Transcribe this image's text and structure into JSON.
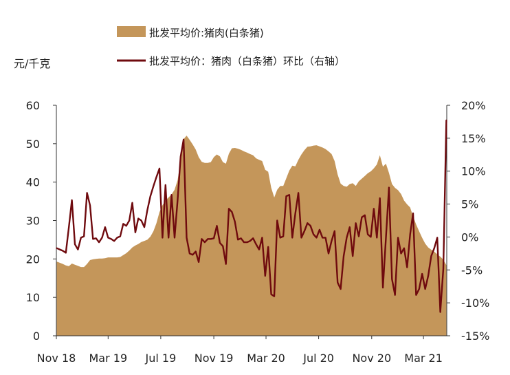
{
  "chart_data": {
    "type": "area",
    "legend": "top",
    "grid": false,
    "xlim": [
      "2018-11-01",
      "2021-04-24"
    ],
    "x_ticks": [
      {
        "date": "2018-11-01",
        "label": "Nov 18"
      },
      {
        "date": "2019-03-01",
        "label": "Mar 19"
      },
      {
        "date": "2019-07-01",
        "label": "Jul 19"
      },
      {
        "date": "2019-11-01",
        "label": "Nov 19"
      },
      {
        "date": "2020-03-01",
        "label": "Mar 20"
      },
      {
        "date": "2020-07-01",
        "label": "Jul 20"
      },
      {
        "date": "2020-11-01",
        "label": "Nov 20"
      },
      {
        "date": "2021-03-01",
        "label": "Mar 21"
      }
    ],
    "y_left": {
      "label": "元/千克",
      "range": [
        0,
        60
      ],
      "ticks": [
        0,
        10,
        20,
        30,
        40,
        50,
        60
      ],
      "tick_labels": [
        "0",
        "10",
        "20",
        "30",
        "40",
        "50",
        "60"
      ]
    },
    "y_right": {
      "range": [
        -15,
        20
      ],
      "ticks": [
        -15,
        -10,
        -5,
        0,
        5,
        10,
        15,
        20
      ],
      "tick_labels": [
        "-15%",
        "-10%",
        "-5%",
        "0%",
        "5%",
        "10%",
        "15%",
        "20%"
      ]
    },
    "x": [
      "2018-11-02",
      "2018-11-09",
      "2018-11-16",
      "2018-11-23",
      "2018-11-30",
      "2018-12-07",
      "2018-12-14",
      "2018-12-21",
      "2018-12-28",
      "2019-01-04",
      "2019-01-11",
      "2019-01-18",
      "2019-01-25",
      "2019-02-01",
      "2019-02-08",
      "2019-02-15",
      "2019-02-22",
      "2019-03-01",
      "2019-03-08",
      "2019-03-15",
      "2019-03-22",
      "2019-03-29",
      "2019-04-05",
      "2019-04-12",
      "2019-04-19",
      "2019-04-26",
      "2019-05-03",
      "2019-05-10",
      "2019-05-17",
      "2019-05-24",
      "2019-05-31",
      "2019-06-07",
      "2019-06-14",
      "2019-06-21",
      "2019-06-28",
      "2019-07-05",
      "2019-07-12",
      "2019-07-19",
      "2019-07-26",
      "2019-08-02",
      "2019-08-09",
      "2019-08-16",
      "2019-08-23",
      "2019-08-30",
      "2019-09-06",
      "2019-09-13",
      "2019-09-20",
      "2019-09-27",
      "2019-10-04",
      "2019-10-11",
      "2019-10-18",
      "2019-10-25",
      "2019-11-01",
      "2019-11-08",
      "2019-11-15",
      "2019-11-22",
      "2019-11-29",
      "2019-12-06",
      "2019-12-13",
      "2019-12-20",
      "2019-12-27",
      "2020-01-03",
      "2020-01-10",
      "2020-01-17",
      "2020-01-24",
      "2020-01-31",
      "2020-02-07",
      "2020-02-14",
      "2020-02-21",
      "2020-02-28",
      "2020-03-06",
      "2020-03-13",
      "2020-03-20",
      "2020-03-27",
      "2020-04-03",
      "2020-04-10",
      "2020-04-17",
      "2020-04-24",
      "2020-05-01",
      "2020-05-08",
      "2020-05-15",
      "2020-05-22",
      "2020-05-29",
      "2020-06-05",
      "2020-06-12",
      "2020-06-19",
      "2020-06-26",
      "2020-07-03",
      "2020-07-10",
      "2020-07-17",
      "2020-07-24",
      "2020-07-31",
      "2020-08-07",
      "2020-08-14",
      "2020-08-21",
      "2020-08-28",
      "2020-09-04",
      "2020-09-11",
      "2020-09-18",
      "2020-09-25",
      "2020-10-02",
      "2020-10-09",
      "2020-10-16",
      "2020-10-23",
      "2020-10-30",
      "2020-11-06",
      "2020-11-13",
      "2020-11-20",
      "2020-11-27",
      "2020-12-04",
      "2020-12-11",
      "2020-12-18",
      "2020-12-25",
      "2021-01-01",
      "2021-01-08",
      "2021-01-15",
      "2021-01-22",
      "2021-01-29",
      "2021-02-05",
      "2021-02-12",
      "2021-02-19",
      "2021-02-26",
      "2021-03-05",
      "2021-03-12",
      "2021-03-19",
      "2021-03-26",
      "2021-04-02",
      "2021-04-09",
      "2021-04-16",
      "2021-04-23"
    ],
    "series": [
      {
        "name": "批发平均价:猪肉(白条猪)",
        "type": "area",
        "axis": "left",
        "color": "#C4965A",
        "values": [
          19.3,
          19.0,
          18.7,
          18.3,
          18.1,
          18.8,
          18.5,
          18.2,
          17.9,
          17.9,
          18.7,
          19.7,
          19.9,
          20.0,
          20.1,
          20.1,
          20.2,
          20.4,
          20.4,
          20.4,
          20.4,
          20.5,
          21.0,
          21.5,
          22.2,
          23.0,
          23.5,
          23.9,
          24.4,
          24.7,
          25.0,
          25.8,
          27.2,
          29.3,
          32.2,
          34.0,
          35.2,
          36.0,
          36.8,
          38.0,
          40.5,
          45.5,
          51.2,
          52.1,
          51.0,
          49.8,
          48.5,
          46.5,
          45.3,
          45.0,
          45.0,
          45.2,
          46.5,
          47.2,
          46.7,
          45.2,
          44.8,
          47.4,
          48.8,
          48.9,
          48.7,
          48.4,
          48.0,
          47.7,
          47.3,
          47.0,
          46.2,
          45.8,
          45.5,
          43.2,
          42.7,
          38.5,
          36.0,
          38.0,
          39.0,
          39.0,
          41.0,
          43.0,
          44.3,
          44.1,
          45.8,
          47.2,
          48.3,
          49.2,
          49.3,
          49.5,
          49.6,
          49.3,
          49.0,
          48.6,
          48.0,
          47.3,
          45.5,
          42.0,
          39.6,
          39.0,
          38.8,
          39.5,
          39.7,
          39.0,
          40.2,
          40.9,
          41.6,
          42.3,
          42.8,
          43.6,
          44.6,
          47.0,
          44.0,
          44.8,
          42.4,
          39.5,
          38.5,
          37.9,
          36.9,
          35.2,
          34.2,
          33.4,
          31.1,
          29.0,
          27.2,
          25.5,
          24.0,
          23.0,
          22.4,
          21.9,
          21.2,
          20.6,
          19.8,
          18.4
        ]
      },
      {
        "name": "批发平均价：猪肉（白条猪）环比（右轴）",
        "type": "line",
        "axis": "right",
        "color": "#6F0A0E",
        "values": [
          -1.7,
          -1.9,
          -2.1,
          -2.4,
          1.5,
          5.6,
          -1.1,
          -1.9,
          -0.1,
          0.1,
          6.7,
          4.8,
          -0.3,
          -0.2,
          -0.8,
          -0.1,
          1.5,
          -0.1,
          -0.3,
          -0.6,
          -0.1,
          0.1,
          2.0,
          1.7,
          2.5,
          5.2,
          0.7,
          2.8,
          2.5,
          1.5,
          4.1,
          6.2,
          7.7,
          9.1,
          10.4,
          -0.1,
          7.9,
          -0.1,
          6.4,
          -0.1,
          5.6,
          12.2,
          14.8,
          -0.1,
          -2.5,
          -2.7,
          -2.2,
          -3.8,
          -0.3,
          -0.8,
          -0.3,
          -0.3,
          -0.2,
          1.7,
          -0.9,
          -1.4,
          -4.1,
          4.3,
          3.8,
          2.3,
          -0.4,
          -0.2,
          -0.8,
          -0.8,
          -0.6,
          -0.2,
          -1.1,
          -1.9,
          -0.1,
          -5.9,
          -1.5,
          -8.7,
          -9.0,
          2.5,
          -0.1,
          0.1,
          6.2,
          6.4,
          -0.1,
          3.6,
          6.7,
          -0.1,
          0.9,
          2.1,
          1.7,
          0.4,
          -0.1,
          1.1,
          -0.1,
          -0.1,
          -2.5,
          -0.6,
          0.9,
          -6.9,
          -7.9,
          -2.9,
          -0.1,
          1.5,
          -2.9,
          2.1,
          0.1,
          3.0,
          3.3,
          0.4,
          0.0,
          4.3,
          -0.1,
          5.9,
          -7.7,
          -0.1,
          7.5,
          -6.4,
          -8.8,
          -0.1,
          -2.5,
          -1.7,
          -4.6,
          0.4,
          3.6,
          -8.8,
          -7.9,
          -5.6,
          -7.9,
          -5.9,
          -2.9,
          -1.7,
          -0.1,
          -11.4,
          -4.8,
          17.7
        ]
      }
    ]
  }
}
